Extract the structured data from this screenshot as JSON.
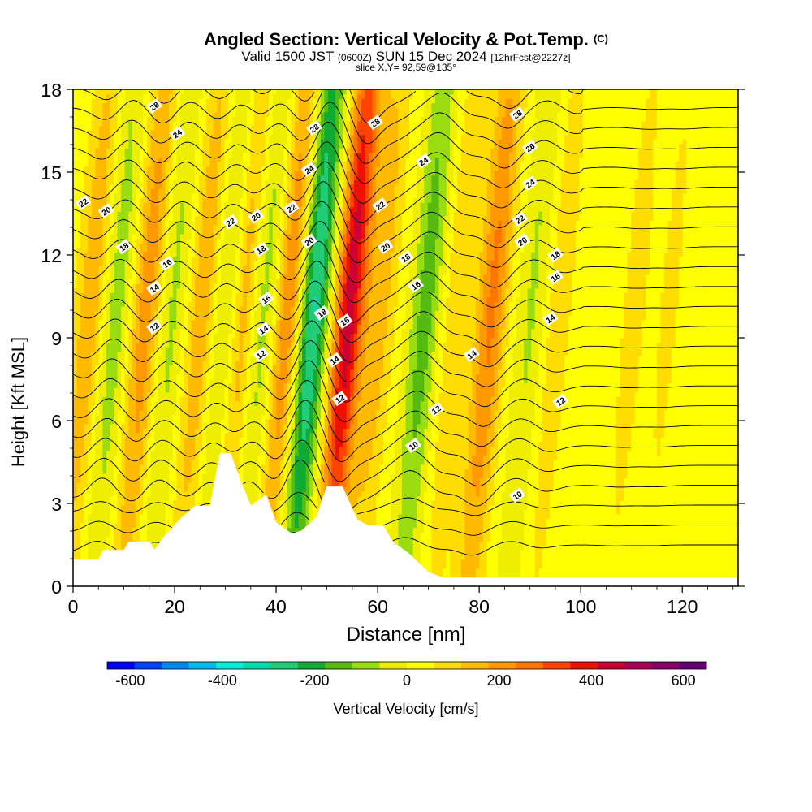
{
  "header": {
    "title": "Angled Section: Vertical Velocity & Pot.Temp.",
    "copyright_mark": "(C)",
    "valid_prefix": "Valid 1500 JST",
    "valid_utc": "(0600Z)",
    "valid_date": "SUN 15 Dec 2024",
    "forecast_tag": "[12hrFcst@2227z]",
    "slice_info": "slice X,Y= 92,59@135°"
  },
  "chart_data": {
    "type": "heatmap",
    "xlabel": "Distance [nm]",
    "ylabel": "Height [Kft MSL]",
    "xlim": [
      0,
      131
    ],
    "ylim": [
      0,
      18
    ],
    "x_ticks": [
      0,
      20,
      40,
      60,
      80,
      100,
      120
    ],
    "y_ticks": [
      0,
      3,
      6,
      9,
      12,
      15,
      18
    ],
    "colorbar": {
      "title": "Vertical Velocity [cm/s]",
      "ticks": [
        -600,
        -400,
        -200,
        0,
        200,
        400,
        600
      ],
      "range": [
        -650,
        650
      ],
      "colors": [
        "#0000ff",
        "#0044ff",
        "#0088ee",
        "#00bbee",
        "#00eedd",
        "#00ddaa",
        "#22cc77",
        "#11aa33",
        "#55bb11",
        "#99dd11",
        "#eeee00",
        "#ffff00",
        "#ffdd00",
        "#ffbb00",
        "#ff9900",
        "#ff7700",
        "#ff4400",
        "#ee1100",
        "#cc0033",
        "#aa0055",
        "#880066",
        "#660077"
      ]
    },
    "vertical_velocity_cores_cm_s": [
      {
        "x": 3,
        "peak": 150
      },
      {
        "x": 8,
        "peak": -120
      },
      {
        "x": 14,
        "peak": 200
      },
      {
        "x": 19,
        "peak": -100
      },
      {
        "x": 25,
        "peak": 150
      },
      {
        "x": 30,
        "peak": -140
      },
      {
        "x": 33,
        "peak": 180
      },
      {
        "x": 37,
        "peak": -130
      },
      {
        "x": 42,
        "peak": 220
      },
      {
        "x": 47,
        "peak": -330
      },
      {
        "x": 54,
        "peak": 430
      },
      {
        "x": 60,
        "peak": 130
      },
      {
        "x": 69,
        "peak": -170
      },
      {
        "x": 75,
        "peak": 90
      },
      {
        "x": 82,
        "peak": 230
      },
      {
        "x": 90,
        "peak": -90
      },
      {
        "x": 95,
        "peak": 80
      },
      {
        "x": 110,
        "peak": 60
      },
      {
        "x": 117,
        "peak": 50
      }
    ],
    "terrain_kft": [
      [
        0,
        0.95
      ],
      [
        5,
        0.95
      ],
      [
        6,
        1.3
      ],
      [
        10,
        1.3
      ],
      [
        11,
        1.6
      ],
      [
        15,
        1.6
      ],
      [
        16,
        1.3
      ],
      [
        18,
        1.8
      ],
      [
        21,
        2.4
      ],
      [
        24,
        2.9
      ],
      [
        27,
        2.9
      ],
      [
        29,
        4.8
      ],
      [
        31,
        4.8
      ],
      [
        33,
        3.8
      ],
      [
        35,
        2.9
      ],
      [
        38,
        3.3
      ],
      [
        40,
        2.3
      ],
      [
        43,
        1.9
      ],
      [
        45,
        2.0
      ],
      [
        48,
        2.5
      ],
      [
        50,
        3.6
      ],
      [
        53,
        3.6
      ],
      [
        56,
        2.4
      ],
      [
        58,
        2.2
      ],
      [
        61,
        2.2
      ],
      [
        63,
        1.6
      ],
      [
        66,
        1.2
      ],
      [
        70,
        0.5
      ],
      [
        73,
        0.3
      ],
      [
        131,
        0.3
      ]
    ],
    "pot_temp_contours_C": [
      10,
      12,
      14,
      16,
      18,
      20,
      22,
      24,
      26,
      28
    ],
    "contour_labels": [
      {
        "x": 16,
        "y": 17.4,
        "text": "28"
      },
      {
        "x": 20.5,
        "y": 16.4,
        "text": "24"
      },
      {
        "x": 2,
        "y": 13.9,
        "text": "22"
      },
      {
        "x": 6.5,
        "y": 13.6,
        "text": "20"
      },
      {
        "x": 10,
        "y": 12.3,
        "text": "18"
      },
      {
        "x": 18.5,
        "y": 11.7,
        "text": "16"
      },
      {
        "x": 16,
        "y": 10.8,
        "text": "14"
      },
      {
        "x": 16,
        "y": 9.4,
        "text": "12"
      },
      {
        "x": 31,
        "y": 13.2,
        "text": "22"
      },
      {
        "x": 36,
        "y": 13.4,
        "text": "20"
      },
      {
        "x": 37,
        "y": 12.2,
        "text": "18"
      },
      {
        "x": 38,
        "y": 10.4,
        "text": "16"
      },
      {
        "x": 37.5,
        "y": 9.3,
        "text": "14"
      },
      {
        "x": 37,
        "y": 8.4,
        "text": "12"
      },
      {
        "x": 47.5,
        "y": 16.6,
        "text": "28"
      },
      {
        "x": 46.5,
        "y": 15.1,
        "text": "24"
      },
      {
        "x": 43,
        "y": 13.7,
        "text": "22"
      },
      {
        "x": 46.5,
        "y": 12.5,
        "text": "20"
      },
      {
        "x": 49,
        "y": 9.9,
        "text": "18"
      },
      {
        "x": 53.5,
        "y": 9.6,
        "text": "16"
      },
      {
        "x": 51.5,
        "y": 8.2,
        "text": "14"
      },
      {
        "x": 52.5,
        "y": 6.8,
        "text": "12"
      },
      {
        "x": 59.5,
        "y": 16.8,
        "text": "28"
      },
      {
        "x": 69,
        "y": 15.4,
        "text": "24"
      },
      {
        "x": 60.5,
        "y": 13.8,
        "text": "22"
      },
      {
        "x": 61.5,
        "y": 12.3,
        "text": "20"
      },
      {
        "x": 65.5,
        "y": 11.9,
        "text": "18"
      },
      {
        "x": 67.5,
        "y": 10.9,
        "text": "16"
      },
      {
        "x": 78.5,
        "y": 8.4,
        "text": "14"
      },
      {
        "x": 71.5,
        "y": 6.4,
        "text": "12"
      },
      {
        "x": 67,
        "y": 5.1,
        "text": "10"
      },
      {
        "x": 87.5,
        "y": 17.1,
        "text": "28"
      },
      {
        "x": 90,
        "y": 15.9,
        "text": "26"
      },
      {
        "x": 90,
        "y": 14.6,
        "text": "24"
      },
      {
        "x": 88,
        "y": 13.3,
        "text": "22"
      },
      {
        "x": 88.5,
        "y": 12.5,
        "text": "20"
      },
      {
        "x": 95,
        "y": 12.0,
        "text": "18"
      },
      {
        "x": 95,
        "y": 11.2,
        "text": "16"
      },
      {
        "x": 94,
        "y": 9.7,
        "text": "14"
      },
      {
        "x": 96,
        "y": 6.7,
        "text": "12"
      },
      {
        "x": 87.5,
        "y": 3.3,
        "text": "10"
      }
    ]
  }
}
